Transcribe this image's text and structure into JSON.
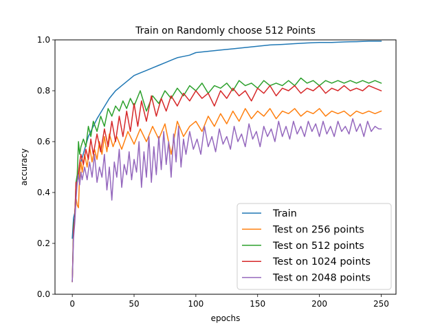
{
  "chart_data": {
    "type": "line",
    "title": "Train on Randomly choose 512 Points",
    "xlabel": "epochs",
    "ylabel": "accuracy",
    "xlim": [
      -14,
      262
    ],
    "ylim": [
      0.0,
      1.0
    ],
    "xticks": [
      0,
      50,
      100,
      150,
      200,
      250
    ],
    "yticks": [
      0.0,
      0.2,
      0.4,
      0.6,
      0.8,
      1.0
    ],
    "grid": false,
    "legend_position": "lower-right",
    "series": [
      {
        "name": "Train",
        "color": "#1f77b4",
        "x": [
          0,
          1,
          2,
          3,
          4,
          5,
          7,
          10,
          13,
          16,
          20,
          25,
          30,
          35,
          40,
          45,
          50,
          55,
          60,
          65,
          70,
          75,
          80,
          85,
          90,
          95,
          100,
          110,
          120,
          130,
          140,
          150,
          160,
          170,
          180,
          190,
          200,
          210,
          220,
          230,
          240,
          250
        ],
        "y": [
          0.22,
          0.3,
          0.32,
          0.4,
          0.45,
          0.47,
          0.52,
          0.57,
          0.62,
          0.65,
          0.69,
          0.73,
          0.77,
          0.8,
          0.82,
          0.84,
          0.86,
          0.87,
          0.88,
          0.89,
          0.9,
          0.91,
          0.92,
          0.93,
          0.935,
          0.94,
          0.95,
          0.955,
          0.96,
          0.965,
          0.97,
          0.975,
          0.98,
          0.982,
          0.985,
          0.988,
          0.99,
          0.99,
          0.992,
          0.993,
          0.995,
          0.995
        ]
      },
      {
        "name": "Test on 256 points",
        "color": "#ff7f0e",
        "x": [
          0,
          1,
          2,
          3,
          4,
          5,
          6,
          7,
          8,
          10,
          12,
          14,
          16,
          18,
          20,
          22,
          24,
          26,
          28,
          30,
          33,
          36,
          40,
          45,
          50,
          55,
          60,
          65,
          70,
          75,
          80,
          85,
          90,
          95,
          100,
          105,
          110,
          115,
          120,
          125,
          130,
          135,
          140,
          145,
          150,
          155,
          160,
          165,
          170,
          175,
          180,
          185,
          190,
          195,
          200,
          205,
          210,
          215,
          220,
          225,
          230,
          235,
          240,
          245,
          250
        ],
        "y": [
          0.05,
          0.25,
          0.3,
          0.38,
          0.35,
          0.34,
          0.48,
          0.52,
          0.48,
          0.55,
          0.5,
          0.58,
          0.52,
          0.57,
          0.53,
          0.6,
          0.55,
          0.62,
          0.56,
          0.63,
          0.58,
          0.62,
          0.57,
          0.64,
          0.59,
          0.65,
          0.6,
          0.66,
          0.61,
          0.67,
          0.55,
          0.68,
          0.62,
          0.66,
          0.68,
          0.64,
          0.7,
          0.66,
          0.71,
          0.67,
          0.72,
          0.68,
          0.73,
          0.69,
          0.72,
          0.7,
          0.73,
          0.69,
          0.72,
          0.71,
          0.73,
          0.7,
          0.72,
          0.71,
          0.73,
          0.7,
          0.72,
          0.71,
          0.72,
          0.7,
          0.72,
          0.71,
          0.72,
          0.71,
          0.72
        ]
      },
      {
        "name": "Test on 512 points",
        "color": "#2ca02c",
        "x": [
          0,
          1,
          2,
          3,
          4,
          5,
          6,
          7,
          9,
          11,
          13,
          15,
          17,
          20,
          23,
          26,
          29,
          32,
          35,
          38,
          41,
          44,
          47,
          50,
          55,
          60,
          65,
          70,
          75,
          80,
          85,
          90,
          95,
          100,
          105,
          110,
          115,
          120,
          125,
          130,
          135,
          140,
          145,
          150,
          155,
          160,
          165,
          170,
          175,
          180,
          185,
          190,
          195,
          200,
          205,
          210,
          215,
          220,
          225,
          230,
          235,
          240,
          245,
          250
        ],
        "y": [
          0.05,
          0.27,
          0.3,
          0.44,
          0.47,
          0.6,
          0.55,
          0.58,
          0.61,
          0.58,
          0.66,
          0.62,
          0.68,
          0.64,
          0.7,
          0.66,
          0.73,
          0.7,
          0.74,
          0.72,
          0.76,
          0.73,
          0.77,
          0.74,
          0.8,
          0.72,
          0.78,
          0.75,
          0.8,
          0.77,
          0.81,
          0.78,
          0.82,
          0.8,
          0.83,
          0.79,
          0.82,
          0.81,
          0.83,
          0.8,
          0.84,
          0.82,
          0.83,
          0.81,
          0.84,
          0.82,
          0.83,
          0.82,
          0.84,
          0.82,
          0.85,
          0.83,
          0.84,
          0.82,
          0.84,
          0.83,
          0.84,
          0.83,
          0.84,
          0.83,
          0.84,
          0.83,
          0.84,
          0.83
        ]
      },
      {
        "name": "Test on 1024 points",
        "color": "#d62728",
        "x": [
          0,
          1,
          2,
          3,
          4,
          5,
          6,
          7,
          9,
          11,
          13,
          15,
          17,
          20,
          23,
          26,
          29,
          32,
          35,
          38,
          41,
          44,
          47,
          50,
          53,
          56,
          60,
          64,
          68,
          72,
          76,
          80,
          85,
          90,
          95,
          100,
          105,
          110,
          115,
          120,
          125,
          130,
          135,
          140,
          145,
          150,
          155,
          160,
          165,
          170,
          175,
          180,
          185,
          190,
          195,
          200,
          205,
          210,
          215,
          220,
          225,
          230,
          235,
          240,
          245,
          250
        ],
        "y": [
          0.05,
          0.25,
          0.3,
          0.44,
          0.44,
          0.48,
          0.52,
          0.55,
          0.51,
          0.57,
          0.53,
          0.61,
          0.55,
          0.63,
          0.56,
          0.65,
          0.58,
          0.68,
          0.6,
          0.7,
          0.62,
          0.72,
          0.64,
          0.75,
          0.66,
          0.76,
          0.68,
          0.78,
          0.7,
          0.77,
          0.72,
          0.78,
          0.74,
          0.79,
          0.76,
          0.8,
          0.77,
          0.79,
          0.74,
          0.8,
          0.77,
          0.81,
          0.78,
          0.8,
          0.76,
          0.81,
          0.79,
          0.82,
          0.78,
          0.81,
          0.8,
          0.82,
          0.79,
          0.81,
          0.8,
          0.82,
          0.79,
          0.81,
          0.8,
          0.82,
          0.8,
          0.81,
          0.8,
          0.82,
          0.81,
          0.8
        ]
      },
      {
        "name": "Test on 2048 points",
        "color": "#9467bd",
        "x": [
          0,
          1,
          2,
          3,
          4,
          5,
          6,
          7,
          8,
          10,
          12,
          14,
          16,
          18,
          20,
          22,
          24,
          26,
          28,
          30,
          32,
          34,
          36,
          38,
          40,
          42,
          44,
          46,
          48,
          50,
          52,
          54,
          56,
          58,
          60,
          62,
          64,
          66,
          68,
          70,
          72,
          74,
          76,
          78,
          80,
          82,
          84,
          86,
          88,
          90,
          92,
          95,
          98,
          101,
          104,
          107,
          110,
          113,
          116,
          119,
          122,
          125,
          128,
          131,
          134,
          137,
          140,
          143,
          146,
          149,
          152,
          155,
          158,
          161,
          164,
          167,
          170,
          173,
          176,
          179,
          182,
          185,
          188,
          191,
          194,
          197,
          200,
          203,
          206,
          209,
          212,
          215,
          218,
          221,
          224,
          227,
          230,
          233,
          236,
          239,
          242,
          245,
          248,
          250
        ],
        "y": [
          0.05,
          0.22,
          0.28,
          0.37,
          0.44,
          0.47,
          0.43,
          0.48,
          0.45,
          0.5,
          0.45,
          0.52,
          0.46,
          0.55,
          0.44,
          0.5,
          0.46,
          0.55,
          0.41,
          0.5,
          0.37,
          0.52,
          0.46,
          0.57,
          0.42,
          0.51,
          0.47,
          0.56,
          0.45,
          0.53,
          0.48,
          0.6,
          0.42,
          0.56,
          0.46,
          0.62,
          0.44,
          0.58,
          0.47,
          0.62,
          0.49,
          0.64,
          0.51,
          0.6,
          0.46,
          0.63,
          0.52,
          0.66,
          0.5,
          0.61,
          0.55,
          0.64,
          0.57,
          0.61,
          0.55,
          0.66,
          0.58,
          0.62,
          0.56,
          0.65,
          0.59,
          0.62,
          0.57,
          0.66,
          0.6,
          0.63,
          0.58,
          0.67,
          0.61,
          0.64,
          0.58,
          0.66,
          0.62,
          0.65,
          0.6,
          0.68,
          0.62,
          0.66,
          0.61,
          0.68,
          0.63,
          0.66,
          0.62,
          0.68,
          0.64,
          0.67,
          0.62,
          0.68,
          0.63,
          0.66,
          0.62,
          0.68,
          0.64,
          0.66,
          0.63,
          0.69,
          0.64,
          0.67,
          0.62,
          0.68,
          0.64,
          0.66,
          0.65,
          0.65
        ]
      }
    ]
  }
}
